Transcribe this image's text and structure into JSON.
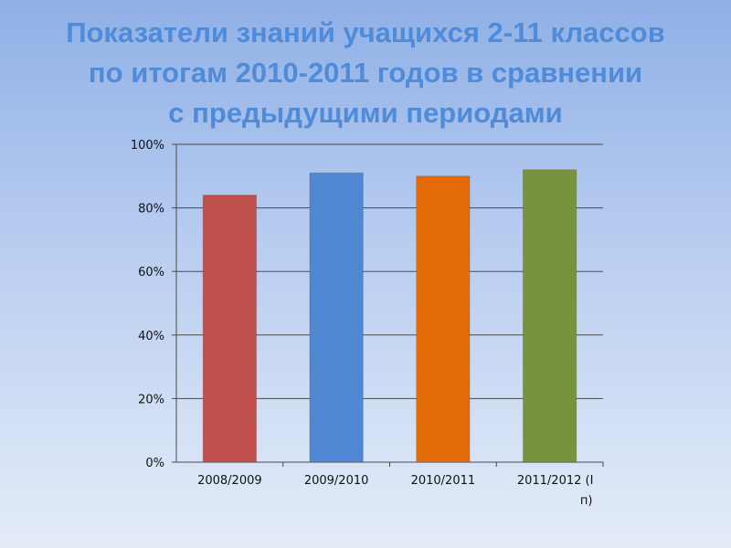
{
  "title_lines": [
    "Показатели знаний учащихся 2-11 классов",
    "по итогам 2010-2011 годов в сравнении",
    "с предыдущими периодами"
  ],
  "chart_data": {
    "type": "bar",
    "categories": [
      "2008/2009",
      "2009/2010",
      "2010/2011",
      "2011/2012 (I п)"
    ],
    "category_lines": [
      [
        "2008/2009"
      ],
      [
        "2009/2010"
      ],
      [
        "2010/2011"
      ],
      [
        "2011/2012 (I",
        "п)"
      ]
    ],
    "values": [
      84,
      91,
      90,
      92
    ],
    "bar_colors": [
      "#c0504d",
      "#4f87d3",
      "#e36c09",
      "#77933c"
    ],
    "ylim": [
      0,
      100
    ],
    "yticks": [
      0,
      20,
      40,
      60,
      80,
      100
    ],
    "ytick_labels": [
      "0%",
      "20%",
      "40%",
      "60%",
      "80%",
      "100%"
    ],
    "grid": true,
    "legend": false
  }
}
